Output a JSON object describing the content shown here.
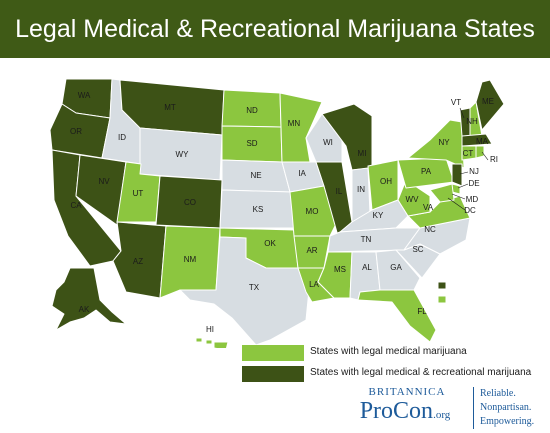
{
  "title": "Legal Medical & Recreational Marijuana States",
  "colors": {
    "header_bg": "#3f5a16",
    "medical": "#8cc63f",
    "recreational": "#3d5216",
    "none": "#d7dde2",
    "border": "#ffffff",
    "brand": "#1e5b9a"
  },
  "legend": {
    "medical_label": "States with legal medical marijuana",
    "recreational_label": "States with legal medical & recreational marijuana"
  },
  "brand": {
    "top": "BRITANNICA",
    "name": "ProCon",
    "suffix": ".org",
    "tagline": [
      "Reliable.",
      "Nonpartisan.",
      "Empowering."
    ]
  },
  "states": {
    "WA": {
      "status": "recreational"
    },
    "OR": {
      "status": "recreational"
    },
    "CA": {
      "status": "recreational"
    },
    "NV": {
      "status": "recreational"
    },
    "ID": {
      "status": "none"
    },
    "MT": {
      "status": "recreational"
    },
    "WY": {
      "status": "none"
    },
    "UT": {
      "status": "medical"
    },
    "AZ": {
      "status": "recreational"
    },
    "CO": {
      "status": "recreational"
    },
    "NM": {
      "status": "medical"
    },
    "ND": {
      "status": "medical"
    },
    "SD": {
      "status": "medical"
    },
    "NE": {
      "status": "none"
    },
    "KS": {
      "status": "none"
    },
    "OK": {
      "status": "medical"
    },
    "TX": {
      "status": "none"
    },
    "MN": {
      "status": "medical"
    },
    "IA": {
      "status": "none"
    },
    "MO": {
      "status": "medical"
    },
    "AR": {
      "status": "medical"
    },
    "LA": {
      "status": "medical"
    },
    "WI": {
      "status": "none"
    },
    "IL": {
      "status": "recreational"
    },
    "MI": {
      "status": "recreational"
    },
    "IN": {
      "status": "none"
    },
    "OH": {
      "status": "medical"
    },
    "KY": {
      "status": "none"
    },
    "TN": {
      "status": "none"
    },
    "MS": {
      "status": "medical"
    },
    "AL": {
      "status": "none"
    },
    "GA": {
      "status": "none"
    },
    "FL": {
      "status": "medical"
    },
    "SC": {
      "status": "none"
    },
    "NC": {
      "status": "none"
    },
    "VA": {
      "status": "medical"
    },
    "WV": {
      "status": "medical"
    },
    "PA": {
      "status": "medical"
    },
    "NY": {
      "status": "medical"
    },
    "VT": {
      "status": "recreational"
    },
    "NH": {
      "status": "medical"
    },
    "ME": {
      "status": "recreational"
    },
    "MA": {
      "status": "recreational"
    },
    "RI": {
      "status": "medical"
    },
    "CT": {
      "status": "medical"
    },
    "NJ": {
      "status": "recreational"
    },
    "DE": {
      "status": "medical"
    },
    "MD": {
      "status": "medical"
    },
    "DC": {
      "status": "recreational"
    },
    "AK": {
      "status": "recreational"
    },
    "HI": {
      "status": "medical"
    }
  }
}
